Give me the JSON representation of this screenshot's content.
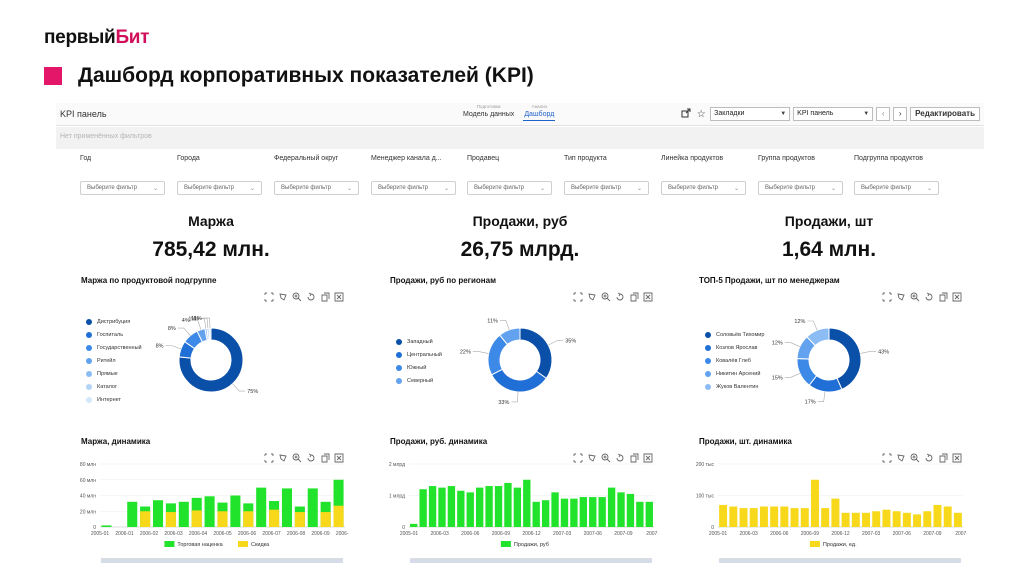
{
  "slide": {
    "logo_main": "первый",
    "logo_accent": "Бит",
    "title": "Дашборд корпоративных показателей (KPI)"
  },
  "app": {
    "panel_name": "KPI панель",
    "tabs": [
      {
        "caption": "Подготовка",
        "label": "Модель данных"
      },
      {
        "caption": "Анализ",
        "label": "Дашборд"
      }
    ],
    "bookmarks_select": "Закладки",
    "panel_select": "KPI панель",
    "edit_label": "Редактировать",
    "no_filters": "Нет применённых фильтров"
  },
  "filters": [
    {
      "label": "Год",
      "placeholder": "Выберите фильтр"
    },
    {
      "label": "Города",
      "placeholder": "Выберите фильтр"
    },
    {
      "label": "Федеральный округ",
      "placeholder": "Выберите фильтр"
    },
    {
      "label": "Менеджер канала д...",
      "placeholder": "Выберите фильтр"
    },
    {
      "label": "Продавец",
      "placeholder": "Выберите фильтр"
    },
    {
      "label": "Тип продукта",
      "placeholder": "Выберите фильтр"
    },
    {
      "label": "Линейка продуктов",
      "placeholder": "Выберите фильтр"
    },
    {
      "label": "Группа продуктов",
      "placeholder": "Выберите фильтр"
    },
    {
      "label": "Подгруппа продуктов",
      "placeholder": "Выберите фильтр"
    }
  ],
  "kpis": [
    {
      "title": "Маржа",
      "value": "785,42 млн."
    },
    {
      "title": "Продажи, руб",
      "value": "26,75 млрд."
    },
    {
      "title": "Продажи, шт",
      "value": "1,64 млн."
    }
  ],
  "colors": {
    "accent": "#e3166a",
    "blue_scale": [
      "#0a4fa8",
      "#1f6fd6",
      "#3d89e8",
      "#62a2ef",
      "#8bbcf3",
      "#b3d3f7",
      "#d6e7fb"
    ],
    "green": "#22e32c",
    "yellow": "#f7d81a"
  },
  "chart_data": [
    {
      "type": "pie",
      "title": "Маржа по продуктовой подгруппе",
      "labels": [
        "Дистрибуция",
        "Госпиталь",
        "Государственный",
        "Ритейл",
        "Прямые",
        "Каталог",
        "Интернет"
      ],
      "values": [
        75,
        8,
        8,
        4,
        1,
        1,
        1
      ],
      "slice_labels": [
        "75%",
        "8%",
        "8%",
        "4%",
        "1%",
        "1%",
        "1%"
      ],
      "legend": "left"
    },
    {
      "type": "pie",
      "title": "Продажи, руб по регионам",
      "labels": [
        "Западный",
        "Центральный",
        "Южный",
        "Северный"
      ],
      "values": [
        35,
        33,
        22,
        11
      ],
      "slice_labels": [
        "35%",
        "33%",
        "22%",
        "11%"
      ],
      "legend": "left"
    },
    {
      "type": "pie",
      "title": "ТОП-5 Продажи, шт по менеджерам",
      "labels": [
        "Соловьёв Тихомир",
        "Козлов Ярослав",
        "Ковалёв Глеб",
        "Никитин Арсений",
        "Жуков Валентин"
      ],
      "values": [
        43,
        17,
        15,
        12,
        12
      ],
      "slice_labels": [
        "43%",
        "17%",
        "15%",
        "12%",
        "12%"
      ],
      "legend": "left"
    },
    {
      "type": "bar",
      "title": "Маржа, динамика",
      "y_ticks": [
        "80 млн",
        "60 млн",
        "40 млн",
        "20 млн",
        "0"
      ],
      "ylim": [
        0,
        80
      ],
      "x_ticks": [
        "2005-01",
        "2006-01",
        "2006-02",
        "2006-03",
        "2006-04",
        "2006-05",
        "2006-06",
        "2006-07",
        "2006-08",
        "2006-09",
        "2006-10"
      ],
      "series": [
        {
          "name": "Торговая наценка",
          "values": [
            2,
            0,
            32,
            26,
            34,
            30,
            32,
            37,
            39,
            31,
            40,
            30,
            50,
            33,
            49,
            26,
            49,
            32,
            60
          ]
        },
        {
          "name": "Скидка",
          "values": [
            0,
            0,
            0,
            20,
            0,
            19,
            0,
            21,
            0,
            20,
            0,
            20,
            0,
            22,
            0,
            19,
            0,
            19,
            27
          ]
        }
      ],
      "legend": "bottom"
    },
    {
      "type": "bar",
      "title": "Продажи, руб. динамика",
      "y_ticks": [
        "2 млрд",
        "1 млрд",
        "0"
      ],
      "ylim": [
        0,
        2
      ],
      "x_ticks": [
        "2005-01",
        "2006-03",
        "2006-06",
        "2006-09",
        "2006-12",
        "2007-03",
        "2007-06",
        "2007-09",
        "2007-1"
      ],
      "series": [
        {
          "name": "Продажи, руб",
          "values": [
            0.1,
            1.2,
            1.3,
            1.25,
            1.3,
            1.15,
            1.1,
            1.25,
            1.3,
            1.3,
            1.4,
            1.25,
            1.5,
            0.8,
            0.85,
            1.1,
            0.9,
            0.9,
            0.95,
            0.95,
            0.95,
            1.25,
            1.1,
            1.05,
            0.8,
            0.8
          ]
        }
      ],
      "legend": "bottom"
    },
    {
      "type": "bar",
      "title": "Продажи, шт. динамика",
      "y_ticks": [
        "200 тыс",
        "100 тыс",
        "0"
      ],
      "ylim": [
        0,
        200
      ],
      "x_ticks": [
        "2005-01",
        "2006-03",
        "2006-06",
        "2006-09",
        "2006-12",
        "2007-03",
        "2007-06",
        "2007-09",
        "2007-1"
      ],
      "series": [
        {
          "name": "Продажи, ед.",
          "values": [
            70,
            65,
            60,
            60,
            65,
            65,
            65,
            60,
            60,
            150,
            60,
            90,
            45,
            45,
            45,
            50,
            55,
            50,
            45,
            40,
            50,
            70,
            65,
            45
          ]
        }
      ],
      "legend": "bottom"
    }
  ]
}
